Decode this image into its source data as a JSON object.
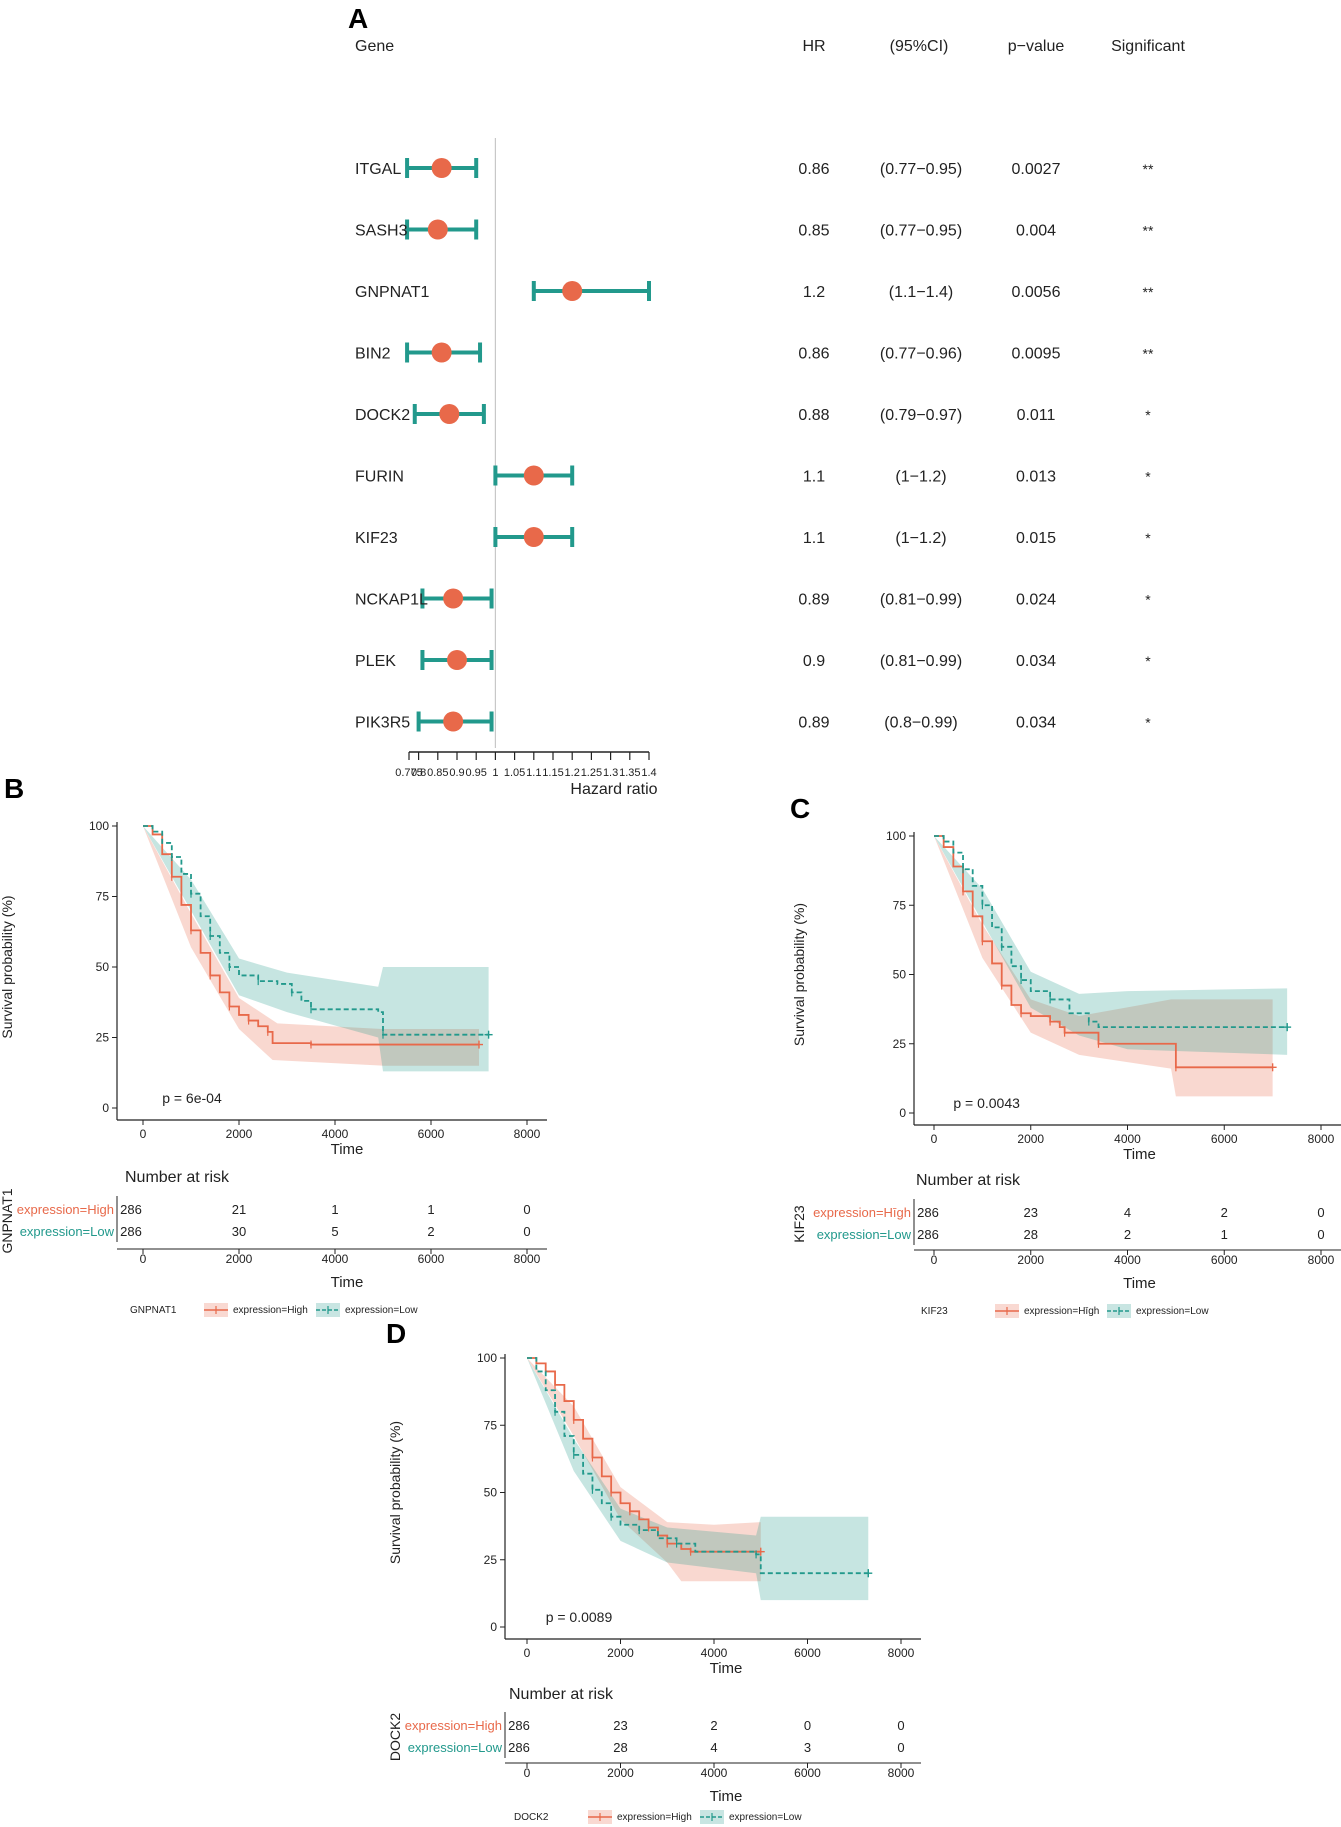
{
  "colors": {
    "high": "#e8694a",
    "low": "#22998c",
    "axis": "#222222",
    "ref": "#c8c8c8"
  },
  "chart_data": [
    {
      "panel": "A",
      "type": "forest",
      "headers": {
        "gene": "Gene",
        "hr": "HR",
        "ci": "(95%CI)",
        "p": "p−value",
        "sig": "Significant"
      },
      "xlabel": "Hazard ratio",
      "ticks": [
        "0.775",
        "0.8",
        "0.85",
        "0.9",
        "0.95",
        "1",
        "1.05",
        "1.1",
        "1.15",
        "1.2",
        "1.25",
        "1.3",
        "1.35",
        "1.4"
      ],
      "tick_values": [
        0.775,
        0.8,
        0.85,
        0.9,
        0.95,
        1,
        1.05,
        1.1,
        1.15,
        1.2,
        1.25,
        1.3,
        1.35,
        1.4
      ],
      "xlim": [
        0.775,
        1.4
      ],
      "reference": 1,
      "rows": [
        {
          "gene": "ITGAL",
          "hr": 0.86,
          "lo": 0.77,
          "hi": 0.95,
          "hr_text": "0.86",
          "ci_text": "(0.77−0.95)",
          "p_text": "0.0027",
          "sig": "**"
        },
        {
          "gene": "SASH3",
          "hr": 0.85,
          "lo": 0.77,
          "hi": 0.95,
          "hr_text": "0.85",
          "ci_text": "(0.77−0.95)",
          "p_text": "0.004",
          "sig": "**"
        },
        {
          "gene": "GNPNAT1",
          "hr": 1.2,
          "lo": 1.1,
          "hi": 1.4,
          "hr_text": "1.2",
          "ci_text": "(1.1−1.4)",
          "p_text": "0.0056",
          "sig": "**"
        },
        {
          "gene": "BIN2",
          "hr": 0.86,
          "lo": 0.77,
          "hi": 0.96,
          "hr_text": "0.86",
          "ci_text": "(0.77−0.96)",
          "p_text": "0.0095",
          "sig": "**"
        },
        {
          "gene": "DOCK2",
          "hr": 0.88,
          "lo": 0.79,
          "hi": 0.97,
          "hr_text": "0.88",
          "ci_text": "(0.79−0.97)",
          "p_text": "0.011",
          "sig": "*"
        },
        {
          "gene": "FURIN",
          "hr": 1.1,
          "lo": 1.0,
          "hi": 1.2,
          "hr_text": "1.1",
          "ci_text": "(1−1.2)",
          "p_text": "0.013",
          "sig": "*"
        },
        {
          "gene": "KIF23",
          "hr": 1.1,
          "lo": 1.0,
          "hi": 1.2,
          "hr_text": "1.1",
          "ci_text": "(1−1.2)",
          "p_text": "0.015",
          "sig": "*"
        },
        {
          "gene": "NCKAP1L",
          "hr": 0.89,
          "lo": 0.81,
          "hi": 0.99,
          "hr_text": "0.89",
          "ci_text": "(0.81−0.99)",
          "p_text": "0.024",
          "sig": "*"
        },
        {
          "gene": "PLEK",
          "hr": 0.9,
          "lo": 0.81,
          "hi": 0.99,
          "hr_text": "0.9",
          "ci_text": "(0.81−0.99)",
          "p_text": "0.034",
          "sig": "*"
        },
        {
          "gene": "PIK3R5",
          "hr": 0.89,
          "lo": 0.8,
          "hi": 0.99,
          "hr_text": "0.89",
          "ci_text": "(0.8−0.99)",
          "p_text": "0.034",
          "sig": "*"
        }
      ]
    },
    {
      "panel": "B",
      "type": "kaplan-meier",
      "gene": "GNPNAT1",
      "pvalue": "p = 6e-04",
      "xlabel": "Time",
      "ylabel": "Survival probability (%)",
      "xticks": [
        0,
        2000,
        4000,
        6000,
        8000
      ],
      "yticks": [
        0,
        25,
        50,
        75,
        100
      ],
      "xlim": [
        0,
        8000
      ],
      "ylim": [
        0,
        100
      ],
      "risk_title": "Number at risk",
      "strata": [
        {
          "label": "expression=High",
          "risk": [
            "286",
            "21",
            "1",
            "1",
            "0"
          ],
          "steps": [
            [
              0,
              100
            ],
            [
              200,
              97
            ],
            [
              400,
              90
            ],
            [
              600,
              82
            ],
            [
              800,
              72
            ],
            [
              1000,
              63
            ],
            [
              1200,
              55
            ],
            [
              1400,
              47
            ],
            [
              1600,
              41
            ],
            [
              1800,
              36
            ],
            [
              2000,
              33
            ],
            [
              2200,
              31
            ],
            [
              2400,
              29
            ],
            [
              2600,
              27
            ],
            [
              2700,
              23
            ],
            [
              3500,
              22.5
            ],
            [
              7000,
              22.5
            ]
          ],
          "upper": [
            [
              0,
              100
            ],
            [
              1000,
              69
            ],
            [
              2000,
              39
            ],
            [
              2800,
              30
            ],
            [
              5000,
              28
            ],
            [
              7000,
              28
            ]
          ],
          "lower": [
            [
              0,
              100
            ],
            [
              1000,
              57
            ],
            [
              2000,
              28
            ],
            [
              2700,
              17
            ],
            [
              5000,
              15
            ],
            [
              7000,
              15
            ]
          ]
        },
        {
          "label": "expression=Low",
          "risk": [
            "286",
            "30",
            "5",
            "2",
            "0"
          ],
          "steps": [
            [
              0,
              100
            ],
            [
              200,
              98
            ],
            [
              400,
              94
            ],
            [
              600,
              89
            ],
            [
              800,
              83
            ],
            [
              1000,
              76
            ],
            [
              1200,
              68
            ],
            [
              1400,
              61
            ],
            [
              1600,
              55
            ],
            [
              1800,
              50
            ],
            [
              2000,
              47
            ],
            [
              2400,
              45
            ],
            [
              2800,
              44
            ],
            [
              3100,
              41
            ],
            [
              3300,
              38
            ],
            [
              3500,
              35
            ],
            [
              4900,
              34
            ],
            [
              5000,
              26
            ],
            [
              7200,
              26
            ]
          ],
          "upper": [
            [
              0,
              100
            ],
            [
              1000,
              81
            ],
            [
              2000,
              53
            ],
            [
              3000,
              48
            ],
            [
              4900,
              43
            ],
            [
              5000,
              50
            ],
            [
              7200,
              50
            ]
          ],
          "lower": [
            [
              0,
              100
            ],
            [
              1000,
              70
            ],
            [
              2000,
              40
            ],
            [
              3000,
              34
            ],
            [
              4900,
              25
            ],
            [
              5000,
              13
            ],
            [
              7200,
              13
            ]
          ]
        }
      ]
    },
    {
      "panel": "C",
      "type": "kaplan-meier",
      "gene": "KIF23",
      "pvalue": "p = 0.0043",
      "xlabel": "Time",
      "ylabel": "Survival probability (%)",
      "xticks": [
        0,
        2000,
        4000,
        6000,
        8000
      ],
      "yticks": [
        0,
        25,
        50,
        75,
        100
      ],
      "xlim": [
        0,
        8000
      ],
      "ylim": [
        0,
        100
      ],
      "risk_title": "Number at risk",
      "strata": [
        {
          "label": "expression=Hīgh",
          "risk": [
            "286",
            "23",
            "4",
            "2",
            "0"
          ],
          "steps": [
            [
              0,
              100
            ],
            [
              200,
              96
            ],
            [
              400,
              89
            ],
            [
              600,
              80
            ],
            [
              800,
              71
            ],
            [
              1000,
              62
            ],
            [
              1200,
              54
            ],
            [
              1400,
              46
            ],
            [
              1600,
              39
            ],
            [
              1800,
              36
            ],
            [
              2000,
              35
            ],
            [
              2400,
              33
            ],
            [
              2600,
              31
            ],
            [
              2700,
              29
            ],
            [
              3300,
              29
            ],
            [
              3400,
              25
            ],
            [
              4900,
              25
            ],
            [
              5000,
              16.5
            ],
            [
              7000,
              16.5
            ]
          ],
          "upper": [
            [
              0,
              100
            ],
            [
              1000,
              68
            ],
            [
              2000,
              41
            ],
            [
              3000,
              35
            ],
            [
              4900,
              41
            ],
            [
              5000,
              41
            ],
            [
              7000,
              41
            ]
          ],
          "lower": [
            [
              0,
              100
            ],
            [
              1000,
              56
            ],
            [
              2000,
              29
            ],
            [
              3000,
              21
            ],
            [
              4900,
              16
            ],
            [
              5000,
              6
            ],
            [
              7000,
              6
            ]
          ]
        },
        {
          "label": "expression=Low",
          "risk": [
            "286",
            "28",
            "2",
            "1",
            "0"
          ],
          "steps": [
            [
              0,
              100
            ],
            [
              200,
              98
            ],
            [
              400,
              94
            ],
            [
              600,
              88
            ],
            [
              800,
              82
            ],
            [
              1000,
              75
            ],
            [
              1200,
              67
            ],
            [
              1400,
              60
            ],
            [
              1600,
              53
            ],
            [
              1800,
              48
            ],
            [
              2000,
              44
            ],
            [
              2400,
              41
            ],
            [
              2800,
              36
            ],
            [
              3200,
              33
            ],
            [
              3400,
              31
            ],
            [
              7300,
              31
            ]
          ],
          "upper": [
            [
              0,
              100
            ],
            [
              1000,
              81
            ],
            [
              2000,
              51
            ],
            [
              3000,
              43
            ],
            [
              4000,
              44
            ],
            [
              7300,
              45
            ]
          ],
          "lower": [
            [
              0,
              100
            ],
            [
              1000,
              69
            ],
            [
              2000,
              38
            ],
            [
              3000,
              28
            ],
            [
              4000,
              23
            ],
            [
              7300,
              21
            ]
          ]
        }
      ]
    },
    {
      "panel": "D",
      "type": "kaplan-meier",
      "gene": "DOCK2",
      "pvalue": "p = 0.0089",
      "xlabel": "Time",
      "ylabel": "Survival probability (%)",
      "xticks": [
        0,
        2000,
        4000,
        6000,
        8000
      ],
      "yticks": [
        0,
        25,
        50,
        75,
        100
      ],
      "xlim": [
        0,
        8000
      ],
      "ylim": [
        0,
        100
      ],
      "risk_title": "Number at risk",
      "strata": [
        {
          "label": "expression=High",
          "risk": [
            "286",
            "23",
            "2",
            "0",
            "0"
          ],
          "steps": [
            [
              0,
              100
            ],
            [
              200,
              98
            ],
            [
              400,
              95
            ],
            [
              600,
              90
            ],
            [
              800,
              84
            ],
            [
              1000,
              77
            ],
            [
              1200,
              70
            ],
            [
              1400,
              63
            ],
            [
              1600,
              56
            ],
            [
              1800,
              50
            ],
            [
              2000,
              46
            ],
            [
              2200,
              43
            ],
            [
              2400,
              40
            ],
            [
              2600,
              37
            ],
            [
              2800,
              34
            ],
            [
              3000,
              31
            ],
            [
              3300,
              29
            ],
            [
              3500,
              28
            ],
            [
              5000,
              28
            ]
          ],
          "upper": [
            [
              0,
              100
            ],
            [
              1000,
              82
            ],
            [
              2000,
              52
            ],
            [
              3000,
              39
            ],
            [
              4000,
              38
            ],
            [
              5000,
              39
            ]
          ],
          "lower": [
            [
              0,
              100
            ],
            [
              1000,
              71
            ],
            [
              2000,
              40
            ],
            [
              3000,
              24
            ],
            [
              3300,
              17
            ],
            [
              5000,
              17
            ]
          ]
        },
        {
          "label": "expression=Low",
          "risk": [
            "286",
            "28",
            "4",
            "3",
            "0"
          ],
          "steps": [
            [
              0,
              100
            ],
            [
              200,
              95
            ],
            [
              400,
              88
            ],
            [
              600,
              80
            ],
            [
              800,
              71
            ],
            [
              1000,
              64
            ],
            [
              1200,
              57
            ],
            [
              1400,
              51
            ],
            [
              1600,
              46
            ],
            [
              1800,
              41
            ],
            [
              2000,
              38
            ],
            [
              2400,
              36
            ],
            [
              2800,
              33
            ],
            [
              3200,
              31
            ],
            [
              3600,
              28
            ],
            [
              4900,
              27
            ],
            [
              5000,
              20
            ],
            [
              7300,
              20
            ]
          ],
          "upper": [
            [
              0,
              100
            ],
            [
              1000,
              70
            ],
            [
              2000,
              44
            ],
            [
              3000,
              37
            ],
            [
              4900,
              34
            ],
            [
              5000,
              41
            ],
            [
              7300,
              41
            ]
          ],
          "lower": [
            [
              0,
              100
            ],
            [
              1000,
              58
            ],
            [
              2000,
              32
            ],
            [
              3000,
              24
            ],
            [
              4900,
              20
            ],
            [
              5000,
              10
            ],
            [
              7300,
              10
            ]
          ]
        }
      ]
    }
  ]
}
